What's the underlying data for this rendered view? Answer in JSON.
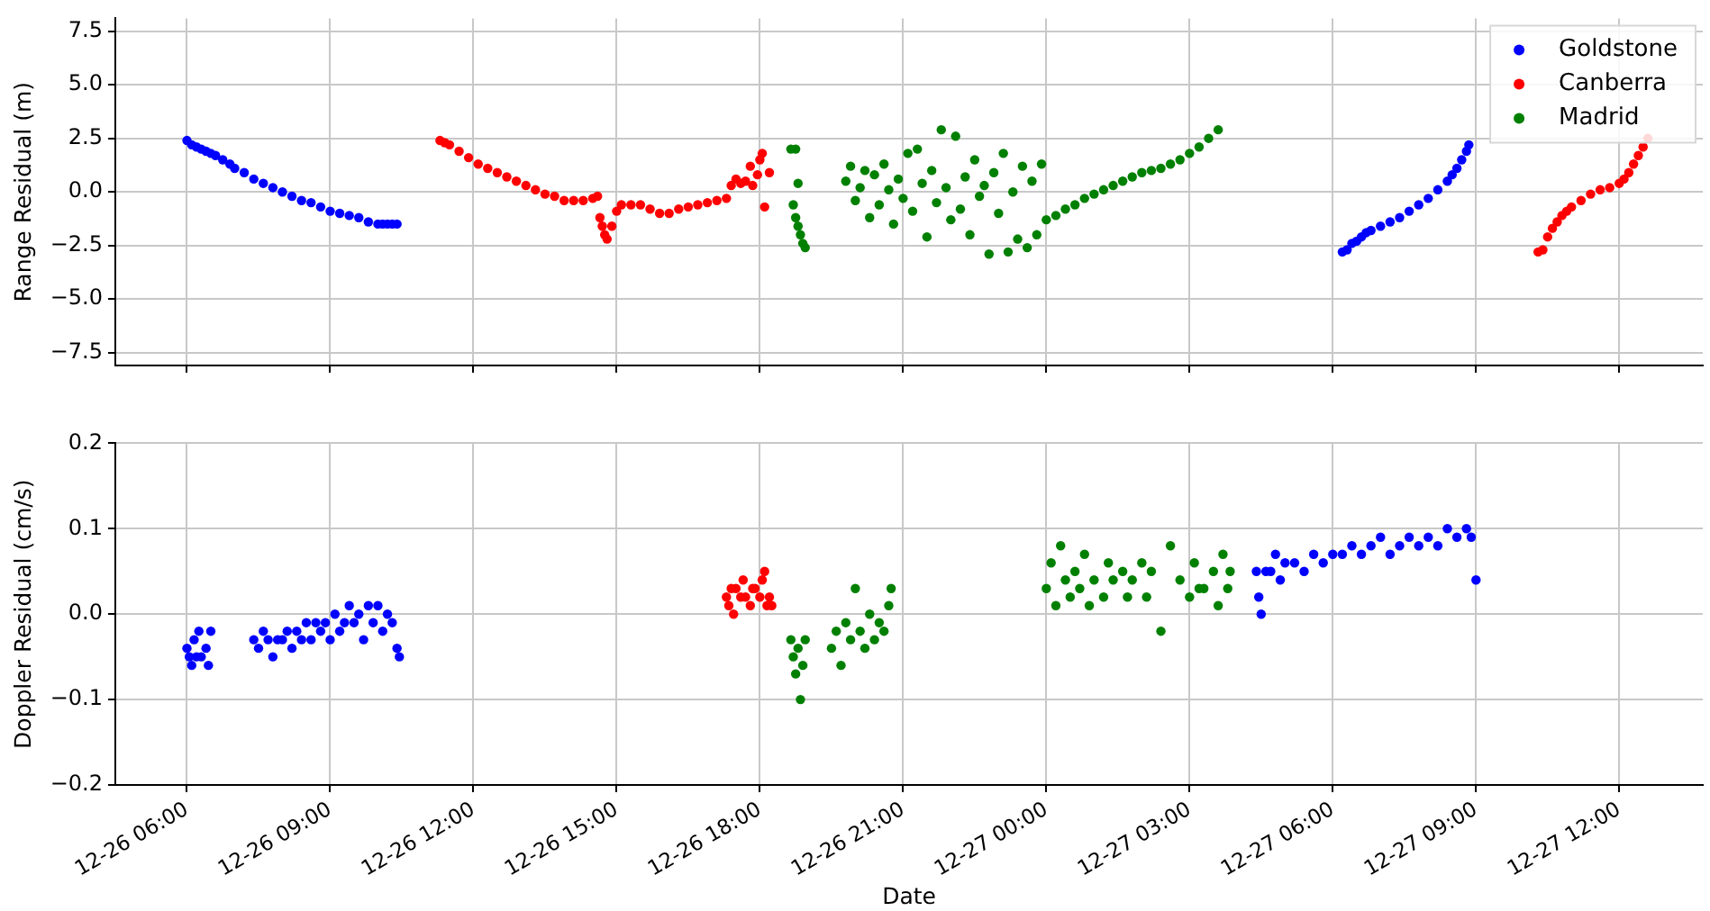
{
  "chart_data": [
    {
      "type": "scatter",
      "ylabel": "Range Residual (m)",
      "legend": "top right",
      "grid": true,
      "marker": "circle",
      "tick_labels": "y",
      "xlim": [
        "--12-26T04:30",
        "--12-27T13:45"
      ],
      "xticks": [
        {
          "value": "--12-26T06:00",
          "label": null
        },
        {
          "value": "--12-26T09:00",
          "label": null
        },
        {
          "value": "--12-26T12:00",
          "label": null
        },
        {
          "value": "--12-26T15:00",
          "label": null
        },
        {
          "value": "--12-26T18:00",
          "label": null
        },
        {
          "value": "--12-26T21:00",
          "label": null
        },
        {
          "value": "--12-27T00:00",
          "label": null
        },
        {
          "value": "--12-27T03:00",
          "label": null
        },
        {
          "value": "--12-27T06:00",
          "label": null
        },
        {
          "value": "--12-27T09:00",
          "label": null
        },
        {
          "value": "--12-27T12:00",
          "label": null
        }
      ],
      "ylim": [
        -8.1,
        8.1
      ],
      "yticks": [
        {
          "value": -7.5,
          "label": "−7.5"
        },
        {
          "value": -5,
          "label": "−5.0"
        },
        {
          "value": -2.5,
          "label": "−2.5"
        },
        {
          "value": 0,
          "label": "0.0"
        },
        {
          "value": 2.5,
          "label": "2.5"
        },
        {
          "value": 5,
          "label": "5.0"
        },
        {
          "value": 7.5,
          "label": "7.5"
        }
      ],
      "series": [
        {
          "name": "Goldstone",
          "color": "#0000ff",
          "x": [
            "--12-26T06:00",
            "--12-26T06:06",
            "--12-26T06:12",
            "--12-26T06:18",
            "--12-26T06:24",
            "--12-26T06:30",
            "--12-26T06:36",
            "--12-26T06:45",
            "--12-26T06:54",
            "--12-26T07:00",
            "--12-26T07:12",
            "--12-26T07:24",
            "--12-26T07:36",
            "--12-26T07:48",
            "--12-26T08:00",
            "--12-26T08:12",
            "--12-26T08:24",
            "--12-26T08:36",
            "--12-26T08:48",
            "--12-26T09:00",
            "--12-26T09:12",
            "--12-26T09:24",
            "--12-26T09:36",
            "--12-26T09:48",
            "--12-26T10:00",
            "--12-26T10:06",
            "--12-26T10:12",
            "--12-26T10:18",
            "--12-26T10:24",
            "--12-27T06:12",
            "--12-27T06:18",
            "--12-27T06:24",
            "--12-27T06:30",
            "--12-27T06:36",
            "--12-27T06:42",
            "--12-27T06:48",
            "--12-27T07:00",
            "--12-27T07:12",
            "--12-27T07:24",
            "--12-27T07:36",
            "--12-27T07:48",
            "--12-27T08:00",
            "--12-27T08:12",
            "--12-27T08:24",
            "--12-27T08:30",
            "--12-27T08:36",
            "--12-27T08:42",
            "--12-27T08:48",
            "--12-27T08:51"
          ],
          "values": [
            2.4,
            2.2,
            2.1,
            2.0,
            1.9,
            1.8,
            1.7,
            1.5,
            1.3,
            1.1,
            0.9,
            0.6,
            0.4,
            0.2,
            0.0,
            -0.2,
            -0.4,
            -0.5,
            -0.7,
            -0.9,
            -1.0,
            -1.1,
            -1.2,
            -1.4,
            -1.5,
            -1.5,
            -1.5,
            -1.5,
            -1.5,
            -2.8,
            -2.7,
            -2.4,
            -2.3,
            -2.1,
            -1.9,
            -1.8,
            -1.6,
            -1.4,
            -1.2,
            -0.9,
            -0.6,
            -0.3,
            0.1,
            0.5,
            0.8,
            1.1,
            1.5,
            1.9,
            2.2
          ]
        },
        {
          "name": "Canberra",
          "color": "#ff0000",
          "x": [
            "--12-26T11:18",
            "--12-26T11:24",
            "--12-26T11:30",
            "--12-26T11:42",
            "--12-26T11:54",
            "--12-26T12:06",
            "--12-26T12:18",
            "--12-26T12:30",
            "--12-26T12:42",
            "--12-26T12:54",
            "--12-26T13:06",
            "--12-26T13:18",
            "--12-26T13:30",
            "--12-26T13:42",
            "--12-26T13:54",
            "--12-26T14:06",
            "--12-26T14:18",
            "--12-26T14:30",
            "--12-26T14:36",
            "--12-26T14:39",
            "--12-26T14:42",
            "--12-26T14:45",
            "--12-26T14:48",
            "--12-26T14:54",
            "--12-26T15:00",
            "--12-26T15:06",
            "--12-26T15:18",
            "--12-26T15:30",
            "--12-26T15:42",
            "--12-26T15:54",
            "--12-26T16:06",
            "--12-26T16:18",
            "--12-26T16:30",
            "--12-26T16:42",
            "--12-26T16:54",
            "--12-26T17:06",
            "--12-26T17:18",
            "--12-26T17:24",
            "--12-26T17:30",
            "--12-26T17:36",
            "--12-26T17:42",
            "--12-26T17:48",
            "--12-26T17:51",
            "--12-26T17:57",
            "--12-26T18:00",
            "--12-26T18:03",
            "--12-26T18:06",
            "--12-26T18:12",
            "--12-27T10:18",
            "--12-27T10:24",
            "--12-27T10:30",
            "--12-27T10:36",
            "--12-27T10:42",
            "--12-27T10:48",
            "--12-27T10:54",
            "--12-27T11:00",
            "--12-27T11:12",
            "--12-27T11:24",
            "--12-27T11:36",
            "--12-27T11:48",
            "--12-27T12:00",
            "--12-27T12:06",
            "--12-27T12:12",
            "--12-27T12:18",
            "--12-27T12:24",
            "--12-27T12:30",
            "--12-27T12:36"
          ],
          "values": [
            2.4,
            2.3,
            2.2,
            1.9,
            1.6,
            1.3,
            1.1,
            0.9,
            0.7,
            0.5,
            0.3,
            0.1,
            -0.1,
            -0.2,
            -0.4,
            -0.4,
            -0.4,
            -0.3,
            -0.2,
            -1.2,
            -1.6,
            -2.0,
            -2.2,
            -1.6,
            -0.9,
            -0.6,
            -0.6,
            -0.6,
            -0.8,
            -1.0,
            -1.0,
            -0.8,
            -0.7,
            -0.6,
            -0.5,
            -0.4,
            -0.3,
            0.3,
            0.6,
            0.4,
            0.5,
            1.2,
            0.3,
            0.8,
            1.5,
            1.8,
            -0.7,
            0.9,
            -2.8,
            -2.7,
            -2.1,
            -1.7,
            -1.4,
            -1.1,
            -0.9,
            -0.7,
            -0.4,
            -0.1,
            0.1,
            0.2,
            0.4,
            0.6,
            0.9,
            1.3,
            1.7,
            2.1,
            2.5
          ]
        },
        {
          "name": "Madrid",
          "color": "#008000",
          "x": [
            "--12-26T18:39",
            "--12-26T18:45",
            "--12-26T18:48",
            "--12-26T18:42",
            "--12-26T18:45",
            "--12-26T18:48",
            "--12-26T18:51",
            "--12-26T18:54",
            "--12-26T18:57",
            "--12-26T19:48",
            "--12-26T19:54",
            "--12-26T20:00",
            "--12-26T20:06",
            "--12-26T20:12",
            "--12-26T20:18",
            "--12-26T20:24",
            "--12-26T20:30",
            "--12-26T20:36",
            "--12-26T20:42",
            "--12-26T20:48",
            "--12-26T20:54",
            "--12-26T21:00",
            "--12-26T21:06",
            "--12-26T21:12",
            "--12-26T21:18",
            "--12-26T21:24",
            "--12-26T21:30",
            "--12-26T21:36",
            "--12-26T21:42",
            "--12-26T21:48",
            "--12-26T21:54",
            "--12-26T22:00",
            "--12-26T22:06",
            "--12-26T22:12",
            "--12-26T22:18",
            "--12-26T22:24",
            "--12-26T22:30",
            "--12-26T22:36",
            "--12-26T22:42",
            "--12-26T22:48",
            "--12-26T22:54",
            "--12-26T23:00",
            "--12-26T23:06",
            "--12-26T23:12",
            "--12-26T23:18",
            "--12-26T23:24",
            "--12-26T23:30",
            "--12-26T23:36",
            "--12-26T23:42",
            "--12-26T23:48",
            "--12-26T23:54",
            "--12-27T00:00",
            "--12-27T00:12",
            "--12-27T00:24",
            "--12-27T00:36",
            "--12-27T00:48",
            "--12-27T01:00",
            "--12-27T01:12",
            "--12-27T01:24",
            "--12-27T01:36",
            "--12-27T01:48",
            "--12-27T02:00",
            "--12-27T02:12",
            "--12-27T02:24",
            "--12-27T02:36",
            "--12-27T02:48",
            "--12-27T03:00",
            "--12-27T03:12",
            "--12-27T03:24",
            "--12-27T03:36"
          ],
          "values": [
            2.0,
            2.0,
            0.4,
            -0.6,
            -1.2,
            -1.6,
            -2.0,
            -2.4,
            -2.6,
            0.5,
            1.2,
            -0.4,
            0.2,
            1.0,
            -1.2,
            0.8,
            -0.6,
            1.3,
            0.1,
            -1.5,
            0.6,
            -0.3,
            1.8,
            -0.9,
            2.0,
            0.4,
            -2.1,
            1.0,
            -0.5,
            2.9,
            0.2,
            -1.3,
            2.6,
            -0.8,
            0.7,
            -2.0,
            1.5,
            -0.2,
            0.3,
            -2.9,
            0.9,
            -1.0,
            1.8,
            -2.8,
            0.0,
            -2.2,
            1.2,
            -2.6,
            0.5,
            -2.0,
            1.3,
            -1.3,
            -1.1,
            -0.8,
            -0.6,
            -0.3,
            -0.1,
            0.1,
            0.3,
            0.5,
            0.7,
            0.9,
            1.0,
            1.1,
            1.3,
            1.5,
            1.8,
            2.1,
            2.5,
            2.9
          ]
        }
      ]
    },
    {
      "type": "scatter",
      "xlabel": "Date",
      "ylabel": "Doppler Residual (cm/s)",
      "grid": true,
      "marker": "circle",
      "xlim": [
        "--12-26T04:30",
        "--12-27T13:45"
      ],
      "xticks": [
        {
          "value": "--12-26T06:00",
          "label": "12-26 06:00"
        },
        {
          "value": "--12-26T09:00",
          "label": "12-26 09:00"
        },
        {
          "value": "--12-26T12:00",
          "label": "12-26 12:00"
        },
        {
          "value": "--12-26T15:00",
          "label": "12-26 15:00"
        },
        {
          "value": "--12-26T18:00",
          "label": "12-26 18:00"
        },
        {
          "value": "--12-26T21:00",
          "label": "12-26 21:00"
        },
        {
          "value": "--12-27T00:00",
          "label": "12-27 00:00"
        },
        {
          "value": "--12-27T03:00",
          "label": "12-27 03:00"
        },
        {
          "value": "--12-27T06:00",
          "label": "12-27 06:00"
        },
        {
          "value": "--12-27T09:00",
          "label": "12-27 09:00"
        },
        {
          "value": "--12-27T12:00",
          "label": "12-27 12:00"
        }
      ],
      "ylim": [
        -0.2,
        0.2
      ],
      "yticks": [
        {
          "value": -0.2,
          "label": "−0.2"
        },
        {
          "value": -0.1,
          "label": "−0.1"
        },
        {
          "value": 0,
          "label": "0.0"
        },
        {
          "value": 0.1,
          "label": "0.1"
        },
        {
          "value": 0.2,
          "label": "0.2"
        }
      ],
      "series": [
        {
          "color": "#0000ff",
          "x": [
            "--12-26T06:00",
            "--12-26T06:03",
            "--12-26T06:06",
            "--12-26T06:09",
            "--12-26T06:12",
            "--12-26T06:15",
            "--12-26T06:18",
            "--12-26T06:24",
            "--12-26T06:27",
            "--12-26T06:30",
            "--12-26T07:24",
            "--12-26T07:30",
            "--12-26T07:36",
            "--12-26T07:42",
            "--12-26T07:48",
            "--12-26T07:54",
            "--12-26T08:00",
            "--12-26T08:06",
            "--12-26T08:12",
            "--12-26T08:18",
            "--12-26T08:24",
            "--12-26T08:30",
            "--12-26T08:36",
            "--12-26T08:42",
            "--12-26T08:48",
            "--12-26T08:54",
            "--12-26T09:00",
            "--12-26T09:06",
            "--12-26T09:12",
            "--12-26T09:18",
            "--12-26T09:24",
            "--12-26T09:30",
            "--12-26T09:36",
            "--12-26T09:42",
            "--12-26T09:48",
            "--12-26T09:54",
            "--12-26T10:00",
            "--12-26T10:06",
            "--12-26T10:12",
            "--12-26T10:18",
            "--12-26T10:24",
            "--12-26T10:27",
            "--12-27T04:24",
            "--12-27T04:27",
            "--12-27T04:30",
            "--12-27T04:36",
            "--12-27T04:42",
            "--12-27T04:48",
            "--12-27T04:54",
            "--12-27T05:00",
            "--12-27T05:12",
            "--12-27T05:24",
            "--12-27T05:36",
            "--12-27T05:48",
            "--12-27T06:00",
            "--12-27T06:12",
            "--12-27T06:24",
            "--12-27T06:36",
            "--12-27T06:48",
            "--12-27T07:00",
            "--12-27T07:12",
            "--12-27T07:24",
            "--12-27T07:36",
            "--12-27T07:48",
            "--12-27T08:00",
            "--12-27T08:12",
            "--12-27T08:24",
            "--12-27T08:36",
            "--12-27T08:48",
            "--12-27T08:54",
            "--12-27T09:00"
          ],
          "values": [
            -0.04,
            -0.05,
            -0.06,
            -0.03,
            -0.05,
            -0.02,
            -0.05,
            -0.04,
            -0.06,
            -0.02,
            -0.03,
            -0.04,
            -0.02,
            -0.03,
            -0.05,
            -0.03,
            -0.03,
            -0.02,
            -0.04,
            -0.02,
            -0.03,
            -0.01,
            -0.03,
            -0.01,
            -0.02,
            -0.01,
            -0.03,
            0.0,
            -0.02,
            -0.01,
            0.01,
            -0.01,
            0.0,
            -0.03,
            0.01,
            -0.01,
            0.01,
            -0.02,
            0.0,
            -0.01,
            -0.04,
            -0.05,
            0.05,
            0.02,
            0.0,
            0.05,
            0.05,
            0.07,
            0.04,
            0.06,
            0.06,
            0.05,
            0.07,
            0.06,
            0.07,
            0.07,
            0.08,
            0.07,
            0.08,
            0.09,
            0.07,
            0.08,
            0.09,
            0.08,
            0.09,
            0.08,
            0.1,
            0.09,
            0.1,
            0.09,
            0.04
          ]
        },
        {
          "color": "#ff0000",
          "x": [
            "--12-26T17:18",
            "--12-26T17:21",
            "--12-26T17:24",
            "--12-26T17:27",
            "--12-26T17:30",
            "--12-26T17:36",
            "--12-26T17:39",
            "--12-26T17:42",
            "--12-26T17:48",
            "--12-26T17:51",
            "--12-26T17:54",
            "--12-26T18:00",
            "--12-26T18:03",
            "--12-26T18:06",
            "--12-26T18:09",
            "--12-26T18:12",
            "--12-26T18:15"
          ],
          "values": [
            0.02,
            0.01,
            0.03,
            0.0,
            0.03,
            0.02,
            0.04,
            0.02,
            0.01,
            0.03,
            0.03,
            0.02,
            0.04,
            0.05,
            0.01,
            0.02,
            0.01
          ]
        },
        {
          "color": "#008000",
          "x": [
            "--12-26T18:39",
            "--12-26T18:42",
            "--12-26T18:45",
            "--12-26T18:48",
            "--12-26T18:51",
            "--12-26T18:54",
            "--12-26T18:57",
            "--12-26T19:30",
            "--12-26T19:36",
            "--12-26T19:42",
            "--12-26T19:48",
            "--12-26T19:54",
            "--12-26T20:00",
            "--12-26T20:06",
            "--12-26T20:12",
            "--12-26T20:18",
            "--12-26T20:24",
            "--12-26T20:30",
            "--12-26T20:36",
            "--12-26T20:42",
            "--12-26T20:45",
            "--12-27T00:00",
            "--12-27T00:06",
            "--12-27T00:12",
            "--12-27T00:18",
            "--12-27T00:24",
            "--12-27T00:30",
            "--12-27T00:36",
            "--12-27T00:42",
            "--12-27T00:48",
            "--12-27T00:54",
            "--12-27T01:00",
            "--12-27T01:12",
            "--12-27T01:18",
            "--12-27T01:24",
            "--12-27T01:36",
            "--12-27T01:42",
            "--12-27T01:48",
            "--12-27T02:00",
            "--12-27T02:06",
            "--12-27T02:12",
            "--12-27T02:24",
            "--12-27T02:36",
            "--12-27T02:48",
            "--12-27T03:00",
            "--12-27T03:06",
            "--12-27T03:12",
            "--12-27T03:18",
            "--12-27T03:30",
            "--12-27T03:36",
            "--12-27T03:42",
            "--12-27T03:48",
            "--12-27T03:51"
          ],
          "values": [
            -0.03,
            -0.05,
            -0.07,
            -0.04,
            -0.1,
            -0.06,
            -0.03,
            -0.04,
            -0.02,
            -0.06,
            -0.01,
            -0.03,
            0.03,
            -0.02,
            -0.04,
            0.0,
            -0.03,
            -0.01,
            -0.02,
            0.01,
            0.03,
            0.03,
            0.06,
            0.01,
            0.08,
            0.04,
            0.02,
            0.05,
            0.03,
            0.07,
            0.01,
            0.04,
            0.02,
            0.06,
            0.04,
            0.05,
            0.02,
            0.04,
            0.06,
            0.02,
            0.05,
            -0.02,
            0.08,
            0.04,
            0.02,
            0.06,
            0.03,
            0.03,
            0.05,
            0.01,
            0.07,
            0.03,
            0.05
          ]
        }
      ]
    }
  ]
}
